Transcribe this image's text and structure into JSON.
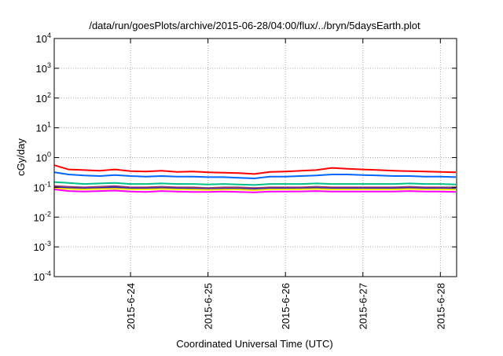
{
  "chart_data": {
    "type": "line",
    "title": "/data/run/goesPlots/archive/2015-06-28/04:00/flux/../bryn/5daysEarth.plot",
    "xlabel": "Coordinated Universal Time (UTC)",
    "ylabel": "cGy/day",
    "yscale": "log",
    "ylim": [
      0.0001,
      10000
    ],
    "xlim_june_day": [
      23.015,
      28.21
    ],
    "grid": true,
    "y_ticks": [
      {
        "base": "10",
        "exp": "4",
        "value": 10000
      },
      {
        "base": "10",
        "exp": "3",
        "value": 1000
      },
      {
        "base": "10",
        "exp": "2",
        "value": 100
      },
      {
        "base": "10",
        "exp": "1",
        "value": 10
      },
      {
        "base": "10",
        "exp": "0",
        "value": 1
      },
      {
        "base": "10",
        "exp": "-1",
        "value": 0.1
      },
      {
        "base": "10",
        "exp": "-2",
        "value": 0.01
      },
      {
        "base": "10",
        "exp": "-3",
        "value": 0.001
      },
      {
        "base": "10",
        "exp": "-4",
        "value": 0.0001
      }
    ],
    "x_ticks": [
      {
        "label": "2015-6-24",
        "value": 24
      },
      {
        "label": "2015-6-25",
        "value": 25
      },
      {
        "label": "2015-6-26",
        "value": 26
      },
      {
        "label": "2015-6-27",
        "value": 27
      },
      {
        "label": "2015-6-28",
        "value": 28
      }
    ],
    "x": [
      23.02,
      23.2,
      23.4,
      23.6,
      23.8,
      24.0,
      24.2,
      24.4,
      24.6,
      24.8,
      25.0,
      25.2,
      25.4,
      25.6,
      25.8,
      26.0,
      26.2,
      26.4,
      26.6,
      26.8,
      27.0,
      27.2,
      27.4,
      27.6,
      27.8,
      28.0,
      28.2
    ],
    "series": [
      {
        "name": "red",
        "color": "#ff0000",
        "values": [
          0.55,
          0.4,
          0.38,
          0.36,
          0.4,
          0.35,
          0.34,
          0.36,
          0.33,
          0.34,
          0.32,
          0.31,
          0.3,
          0.28,
          0.33,
          0.34,
          0.36,
          0.38,
          0.45,
          0.42,
          0.4,
          0.38,
          0.36,
          0.35,
          0.34,
          0.33,
          0.32
        ]
      },
      {
        "name": "blue",
        "color": "#0066ff",
        "values": [
          0.32,
          0.27,
          0.25,
          0.24,
          0.26,
          0.24,
          0.23,
          0.24,
          0.23,
          0.23,
          0.22,
          0.22,
          0.21,
          0.2,
          0.23,
          0.23,
          0.24,
          0.25,
          0.27,
          0.27,
          0.26,
          0.25,
          0.24,
          0.24,
          0.23,
          0.23,
          0.22
        ]
      },
      {
        "name": "green",
        "color": "#00c08a",
        "values": [
          0.15,
          0.14,
          0.13,
          0.135,
          0.14,
          0.13,
          0.13,
          0.135,
          0.13,
          0.13,
          0.125,
          0.13,
          0.125,
          0.12,
          0.13,
          0.13,
          0.13,
          0.135,
          0.13,
          0.13,
          0.13,
          0.13,
          0.13,
          0.135,
          0.13,
          0.13,
          0.125
        ]
      },
      {
        "name": "purple",
        "color": "#a0406a",
        "values": [
          0.11,
          0.105,
          0.1,
          0.105,
          0.11,
          0.1,
          0.1,
          0.105,
          0.1,
          0.1,
          0.095,
          0.1,
          0.1,
          0.095,
          0.1,
          0.1,
          0.1,
          0.105,
          0.1,
          0.1,
          0.1,
          0.1,
          0.1,
          0.105,
          0.1,
          0.1,
          0.1
        ]
      },
      {
        "name": "dark-blue",
        "color": "#2020c0",
        "values": [
          0.1,
          0.095,
          0.092,
          0.095,
          0.1,
          0.092,
          0.092,
          0.095,
          0.092,
          0.09,
          0.088,
          0.09,
          0.09,
          0.087,
          0.092,
          0.092,
          0.092,
          0.095,
          0.092,
          0.092,
          0.092,
          0.092,
          0.092,
          0.095,
          0.092,
          0.092,
          0.09
        ]
      },
      {
        "name": "yellow",
        "color": "#ffe800",
        "values": [
          0.092,
          0.088,
          0.085,
          0.088,
          0.09,
          0.085,
          0.085,
          0.088,
          0.085,
          0.084,
          0.082,
          0.084,
          0.084,
          0.08,
          0.085,
          0.085,
          0.086,
          0.088,
          0.085,
          0.085,
          0.085,
          0.085,
          0.085,
          0.088,
          0.085,
          0.085,
          0.084
        ]
      },
      {
        "name": "magenta",
        "color": "#ff00ff",
        "values": [
          0.085,
          0.075,
          0.072,
          0.075,
          0.078,
          0.072,
          0.07,
          0.075,
          0.072,
          0.07,
          0.07,
          0.072,
          0.07,
          0.068,
          0.072,
          0.072,
          0.073,
          0.075,
          0.072,
          0.072,
          0.072,
          0.072,
          0.072,
          0.075,
          0.072,
          0.072,
          0.07
        ]
      }
    ]
  }
}
